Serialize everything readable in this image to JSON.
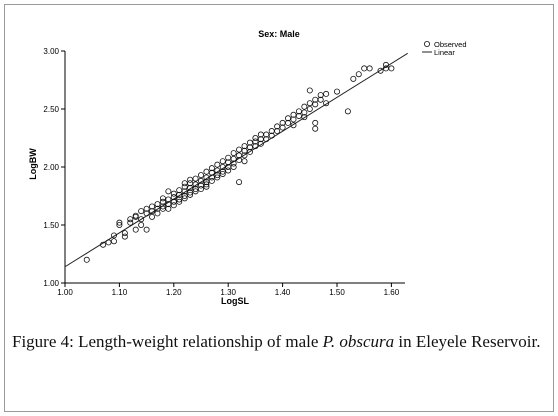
{
  "chart_data": {
    "type": "scatter",
    "title": "Sex: Male",
    "xlabel": "LogSL",
    "ylabel": "LogBW",
    "xlim": [
      1.0,
      1.65
    ],
    "ylim": [
      1.0,
      3.0
    ],
    "x_ticks": [
      "1.00",
      "1.10",
      "1.20",
      "1.30",
      "1.40",
      "1.50",
      "1.60"
    ],
    "y_ticks": [
      "1.00",
      "1.50",
      "2.00",
      "2.50",
      "3.00"
    ],
    "grid": false,
    "legend_position": "top-right",
    "series": [
      {
        "name": "Observed",
        "marker": "open-circle",
        "points": [
          [
            1.04,
            1.2
          ],
          [
            1.07,
            1.33
          ],
          [
            1.08,
            1.35
          ],
          [
            1.09,
            1.36
          ],
          [
            1.09,
            1.41
          ],
          [
            1.1,
            1.52
          ],
          [
            1.1,
            1.5
          ],
          [
            1.11,
            1.4
          ],
          [
            1.11,
            1.43
          ],
          [
            1.12,
            1.55
          ],
          [
            1.12,
            1.52
          ],
          [
            1.13,
            1.57
          ],
          [
            1.13,
            1.58
          ],
          [
            1.13,
            1.46
          ],
          [
            1.14,
            1.55
          ],
          [
            1.14,
            1.5
          ],
          [
            1.14,
            1.62
          ],
          [
            1.15,
            1.6
          ],
          [
            1.15,
            1.64
          ],
          [
            1.15,
            1.46
          ],
          [
            1.16,
            1.57
          ],
          [
            1.16,
            1.66
          ],
          [
            1.16,
            1.62
          ],
          [
            1.17,
            1.64
          ],
          [
            1.17,
            1.68
          ],
          [
            1.17,
            1.6
          ],
          [
            1.18,
            1.66
          ],
          [
            1.18,
            1.7
          ],
          [
            1.18,
            1.64
          ],
          [
            1.18,
            1.73
          ],
          [
            1.19,
            1.68
          ],
          [
            1.19,
            1.72
          ],
          [
            1.19,
            1.79
          ],
          [
            1.19,
            1.64
          ],
          [
            1.2,
            1.7
          ],
          [
            1.2,
            1.74
          ],
          [
            1.2,
            1.67
          ],
          [
            1.2,
            1.77
          ],
          [
            1.21,
            1.72
          ],
          [
            1.21,
            1.76
          ],
          [
            1.21,
            1.8
          ],
          [
            1.21,
            1.7
          ],
          [
            1.22,
            1.75
          ],
          [
            1.22,
            1.79
          ],
          [
            1.22,
            1.83
          ],
          [
            1.22,
            1.73
          ],
          [
            1.22,
            1.86
          ],
          [
            1.23,
            1.78
          ],
          [
            1.23,
            1.82
          ],
          [
            1.23,
            1.86
          ],
          [
            1.23,
            1.76
          ],
          [
            1.23,
            1.89
          ],
          [
            1.24,
            1.81
          ],
          [
            1.24,
            1.85
          ],
          [
            1.24,
            1.79
          ],
          [
            1.24,
            1.9
          ],
          [
            1.25,
            1.84
          ],
          [
            1.25,
            1.88
          ],
          [
            1.25,
            1.93
          ],
          [
            1.25,
            1.81
          ],
          [
            1.26,
            1.87
          ],
          [
            1.26,
            1.91
          ],
          [
            1.26,
            1.96
          ],
          [
            1.26,
            1.85
          ],
          [
            1.26,
            1.83
          ],
          [
            1.27,
            1.91
          ],
          [
            1.27,
            1.95
          ],
          [
            1.27,
            1.99
          ],
          [
            1.27,
            1.88
          ],
          [
            1.28,
            1.93
          ],
          [
            1.28,
            1.97
          ],
          [
            1.28,
            2.02
          ],
          [
            1.28,
            1.91
          ],
          [
            1.29,
            1.96
          ],
          [
            1.29,
            2.0
          ],
          [
            1.29,
            2.05
          ],
          [
            1.29,
            1.94
          ],
          [
            1.3,
            2.0
          ],
          [
            1.3,
            2.04
          ],
          [
            1.3,
            2.08
          ],
          [
            1.3,
            1.97
          ],
          [
            1.31,
            2.03
          ],
          [
            1.31,
            2.07
          ],
          [
            1.31,
            2.12
          ],
          [
            1.31,
            2.0
          ],
          [
            1.32,
            2.06
          ],
          [
            1.32,
            2.1
          ],
          [
            1.32,
            2.15
          ],
          [
            1.32,
            1.87
          ],
          [
            1.33,
            2.1
          ],
          [
            1.33,
            2.14
          ],
          [
            1.33,
            2.18
          ],
          [
            1.33,
            2.05
          ],
          [
            1.34,
            2.13
          ],
          [
            1.34,
            2.17
          ],
          [
            1.34,
            2.21
          ],
          [
            1.35,
            2.18
          ],
          [
            1.35,
            2.22
          ],
          [
            1.35,
            2.25
          ],
          [
            1.36,
            2.2
          ],
          [
            1.36,
            2.24
          ],
          [
            1.36,
            2.28
          ],
          [
            1.37,
            2.24
          ],
          [
            1.37,
            2.28
          ],
          [
            1.38,
            2.27
          ],
          [
            1.38,
            2.31
          ],
          [
            1.39,
            2.31
          ],
          [
            1.39,
            2.35
          ],
          [
            1.4,
            2.34
          ],
          [
            1.4,
            2.38
          ],
          [
            1.41,
            2.38
          ],
          [
            1.41,
            2.42
          ],
          [
            1.42,
            2.41
          ],
          [
            1.42,
            2.45
          ],
          [
            1.42,
            2.36
          ],
          [
            1.43,
            2.44
          ],
          [
            1.43,
            2.48
          ],
          [
            1.44,
            2.47
          ],
          [
            1.44,
            2.43
          ],
          [
            1.44,
            2.52
          ],
          [
            1.45,
            2.5
          ],
          [
            1.45,
            2.55
          ],
          [
            1.45,
            2.66
          ],
          [
            1.46,
            2.54
          ],
          [
            1.46,
            2.58
          ],
          [
            1.46,
            2.38
          ],
          [
            1.46,
            2.33
          ],
          [
            1.47,
            2.58
          ],
          [
            1.47,
            2.62
          ],
          [
            1.48,
            2.63
          ],
          [
            1.48,
            2.55
          ],
          [
            1.5,
            2.65
          ],
          [
            1.52,
            2.48
          ],
          [
            1.53,
            2.76
          ],
          [
            1.54,
            2.8
          ],
          [
            1.55,
            2.85
          ],
          [
            1.56,
            2.85
          ],
          [
            1.58,
            2.83
          ],
          [
            1.59,
            2.85
          ],
          [
            1.59,
            2.88
          ],
          [
            1.6,
            2.85
          ]
        ]
      },
      {
        "name": "Linear",
        "line": [
          [
            1.0,
            1.14
          ],
          [
            1.63,
            2.98
          ]
        ]
      }
    ]
  },
  "caption": {
    "label": "Figure 4:",
    "text_before": " Length-weight relationship of male ",
    "species": "P. obscura",
    "text_after": " in Eleyele Reservoir."
  }
}
